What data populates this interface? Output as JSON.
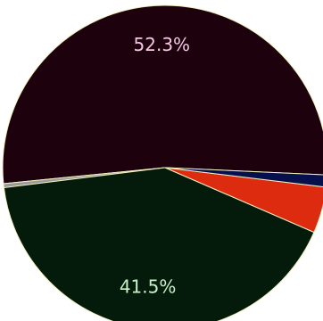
{
  "chart_data": {
    "type": "pie",
    "slices": [
      {
        "value": 52.3,
        "color": "#1d010d",
        "label": "52.3%",
        "label_color": "#f3c6e2"
      },
      {
        "value": 0.4,
        "color": "#9a9a9a",
        "label": ""
      },
      {
        "value": 41.5,
        "color": "#041a0b",
        "label": "41.5%",
        "label_color": "#c8f1c9"
      },
      {
        "value": 4.6,
        "color": "#dd2b10",
        "label": ""
      },
      {
        "value": 1.2,
        "color": "#06104d",
        "label": ""
      }
    ],
    "start_angle_deg": 2.6,
    "direction": "counterclockwise",
    "slice_separator_color": "#f0f0c0",
    "legend": "none"
  }
}
